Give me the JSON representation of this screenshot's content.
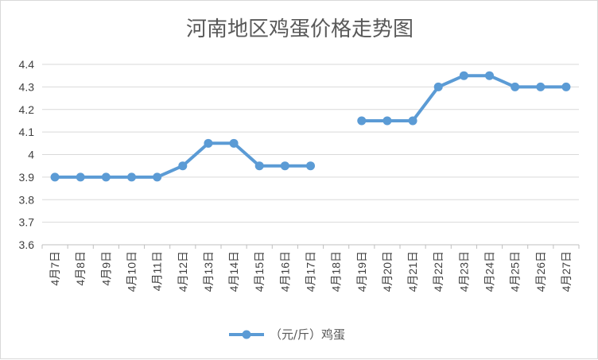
{
  "chart_data": {
    "type": "line",
    "title": "河南地区鸡蛋价格走势图",
    "xlabel": "",
    "ylabel": "",
    "categories": [
      "4月7日",
      "4月8日",
      "4月9日",
      "4月10日",
      "4月11日",
      "4月12日",
      "4月13日",
      "4月14日",
      "4月15日",
      "4月16日",
      "4月17日",
      "4月18日",
      "4月19日",
      "4月20日",
      "4月21日",
      "4月22日",
      "4月23日",
      "4月24日",
      "4月25日",
      "4月26日",
      "4月27日"
    ],
    "series": [
      {
        "name": "（元/斤）鸡蛋",
        "color": "#5b9bd5",
        "values": [
          3.9,
          3.9,
          3.9,
          3.9,
          3.9,
          3.95,
          4.05,
          4.05,
          3.95,
          3.95,
          3.95,
          null,
          4.15,
          4.15,
          4.15,
          4.3,
          4.35,
          4.35,
          4.3,
          4.3,
          4.3
        ]
      }
    ],
    "y_ticks": [
      "3.6",
      "3.7",
      "3.8",
      "3.9",
      "4",
      "4.1",
      "4.2",
      "4.3",
      "4.4"
    ],
    "ylim": [
      3.6,
      4.4
    ],
    "grid": true,
    "legend_position": "bottom"
  }
}
